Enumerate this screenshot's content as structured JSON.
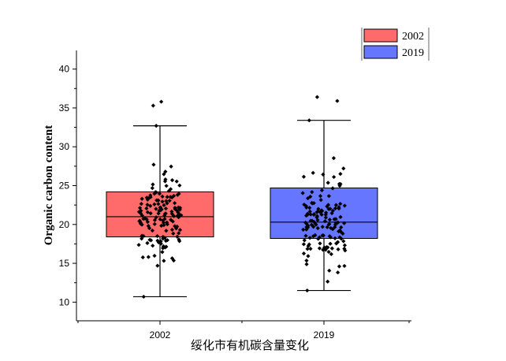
{
  "chart_data": {
    "type": "box",
    "title": "",
    "xlabel": "绥化市有机碳含量变化",
    "ylabel": "Organic carbon content",
    "categories": [
      "2002",
      "2019"
    ],
    "ylim": [
      7.6,
      42.4
    ],
    "yticks": [
      10,
      15,
      20,
      25,
      30,
      35,
      40
    ],
    "legend_position": "top-right",
    "grid": false,
    "series": [
      {
        "name": "2002",
        "color": "#ff6b6b",
        "whisker_low": 10.7,
        "q1": 18.4,
        "median": 21.0,
        "q3": 24.2,
        "whisker_high": 32.7,
        "points_count": 150,
        "points_range": [
          10.7,
          35.8
        ]
      },
      {
        "name": "2019",
        "color": "#6676ff",
        "whisker_low": 11.5,
        "q1": 18.2,
        "median": 20.3,
        "q3": 24.7,
        "whisker_high": 33.4,
        "points_count": 150,
        "points_range": [
          11.5,
          36.4
        ]
      }
    ]
  }
}
